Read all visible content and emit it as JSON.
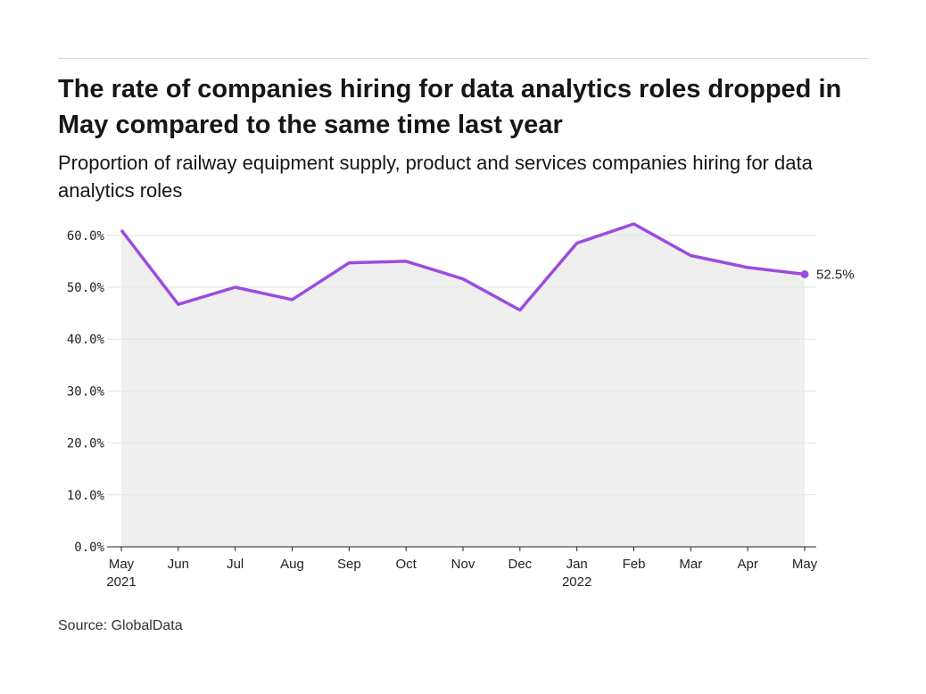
{
  "title": "The rate of companies hiring for data analytics roles dropped in May compared to the same time last year",
  "subtitle": "Proportion of railway equipment supply, product and services companies hiring for data analytics roles",
  "source": "Source: GlobalData",
  "chart_data": {
    "type": "area",
    "title": "The rate of companies hiring for data analytics roles dropped in May compared to the same time last year",
    "subtitle": "Proportion of railway equipment supply, product and services companies hiring for data analytics roles",
    "categories": [
      "May",
      "Jun",
      "Jul",
      "Aug",
      "Sep",
      "Oct",
      "Nov",
      "Dec",
      "Jan",
      "Feb",
      "Mar",
      "Apr",
      "May"
    ],
    "year_labels": [
      "2021",
      "",
      "",
      "",
      "",
      "",
      "",
      "",
      "2022",
      "",
      "",
      "",
      ""
    ],
    "values": [
      61.0,
      46.7,
      50.0,
      47.6,
      54.7,
      55.0,
      51.6,
      45.6,
      58.5,
      62.2,
      56.1,
      53.8,
      52.5
    ],
    "ylim": [
      0,
      60
    ],
    "yticks": [
      "0.0%",
      "10.0%",
      "20.0%",
      "30.0%",
      "40.0%",
      "50.0%",
      "60.0%"
    ],
    "grid": true,
    "last_label": "52.5%",
    "line_color": "#9b4ce0",
    "fill_color": "#efefef"
  }
}
